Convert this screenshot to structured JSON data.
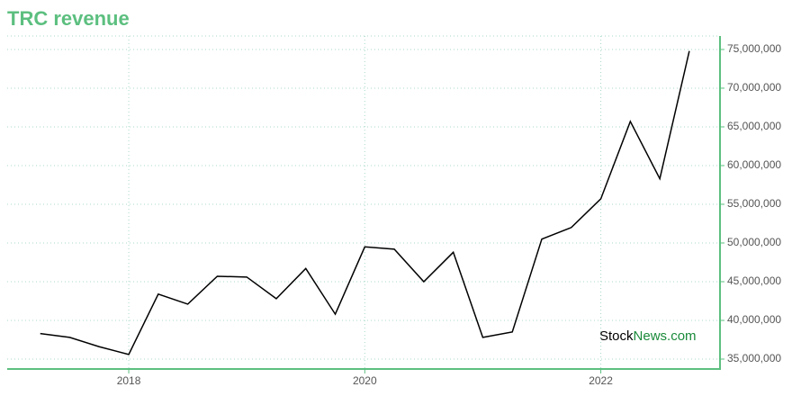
{
  "chart_data": {
    "type": "line",
    "title": "TRC revenue",
    "x": [
      2017.25,
      2017.5,
      2017.75,
      2018,
      2018.25,
      2018.5,
      2018.75,
      2019,
      2019.25,
      2019.5,
      2019.75,
      2020,
      2020.25,
      2020.5,
      2020.75,
      2021,
      2021.25,
      2021.5,
      2021.75,
      2022,
      2022.25,
      2022.5,
      2022.75
    ],
    "series": [
      {
        "name": "TRC revenue",
        "color": "#000000",
        "values": [
          38300000,
          37800000,
          36600000,
          35600000,
          43400000,
          42100000,
          45700000,
          45600000,
          42800000,
          46700000,
          40800000,
          49500000,
          49200000,
          45000000,
          48800000,
          37800000,
          38500000,
          50500000,
          52000000,
          55700000,
          65700000,
          58300000,
          74800000
        ]
      }
    ],
    "xlim": [
      2016.97,
      2023.01
    ],
    "xticks": [
      2018,
      2020,
      2022
    ],
    "ylim": [
      33720000,
      76740000
    ],
    "yticks": [
      {
        "value": 35000000,
        "label": "35,000,000"
      },
      {
        "value": 40000000,
        "label": "40,000,000"
      },
      {
        "value": 45000000,
        "label": "45,000,000"
      },
      {
        "value": 50000000,
        "label": "50,000,000"
      },
      {
        "value": 55000000,
        "label": "55,000,000"
      },
      {
        "value": 60000000,
        "label": "60,000,000"
      },
      {
        "value": 65000000,
        "label": "65,000,000"
      },
      {
        "value": 70000000,
        "label": "70,000,000"
      },
      {
        "value": 75000000,
        "label": "75,000,000"
      }
    ],
    "grid": true,
    "axis_color": "#5cbf7f",
    "watermark": [
      "Stock",
      "News.com"
    ]
  }
}
